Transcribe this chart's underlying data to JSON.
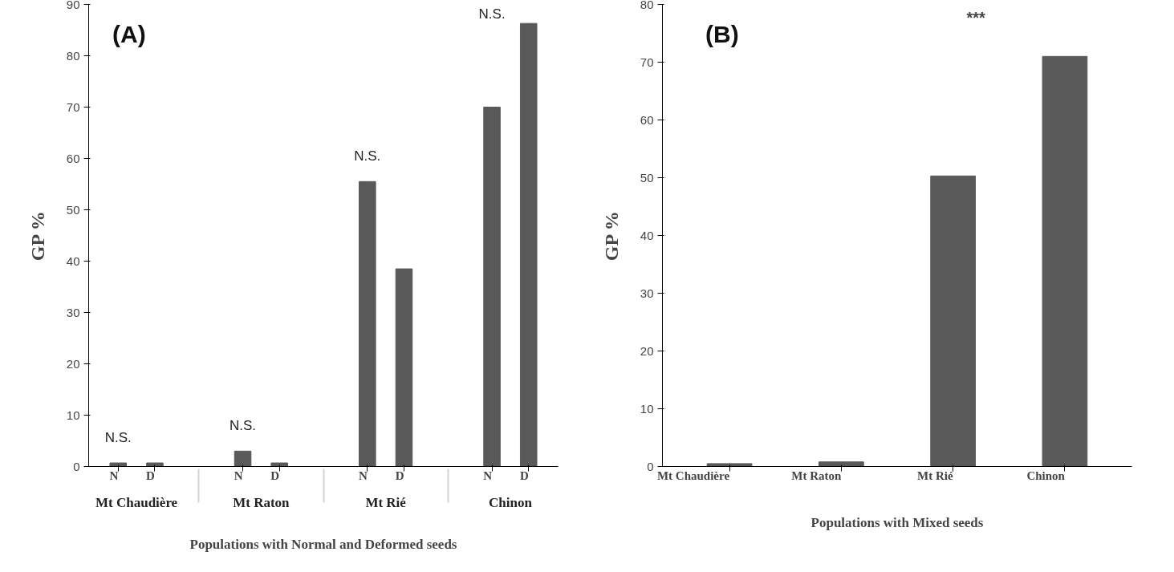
{
  "chart_data": [
    {
      "type": "bar",
      "categories": [
        "Mt Chaudière",
        "Mt Raton",
        "Mt Rié",
        "Chinon"
      ],
      "xlabel": "Populations with Normal and Deformed seeds",
      "ylabel": "GP %",
      "ylim": [
        0,
        90
      ],
      "yticks": [
        0,
        10,
        20,
        30,
        40,
        50,
        60,
        70,
        80,
        90
      ],
      "grid": false,
      "series": [
        {
          "name": "N",
          "color": "#595959",
          "values": [
            0.7,
            3,
            55.5,
            70
          ]
        },
        {
          "name": "D",
          "color": "#595959",
          "values": [
            0.7,
            0.7,
            38.5,
            86.3
          ]
        }
      ],
      "annotations": [
        "(A)",
        "N.S.",
        "N.S.",
        "N.S.",
        "N.S."
      ]
    },
    {
      "type": "bar",
      "categories": [
        "Mt Chaudière",
        "Mt Raton",
        "Mt Rié",
        "Chinon"
      ],
      "xlabel": "Populations with Mixed seeds",
      "ylabel": "GP %",
      "ylim": [
        0,
        80
      ],
      "yticks": [
        0,
        10,
        20,
        30,
        40,
        50,
        60,
        70,
        80
      ],
      "grid": false,
      "color": "#595959",
      "values": [
        0.5,
        0.8,
        50.3,
        71
      ],
      "annotations": [
        "(B)",
        "***"
      ]
    }
  ]
}
